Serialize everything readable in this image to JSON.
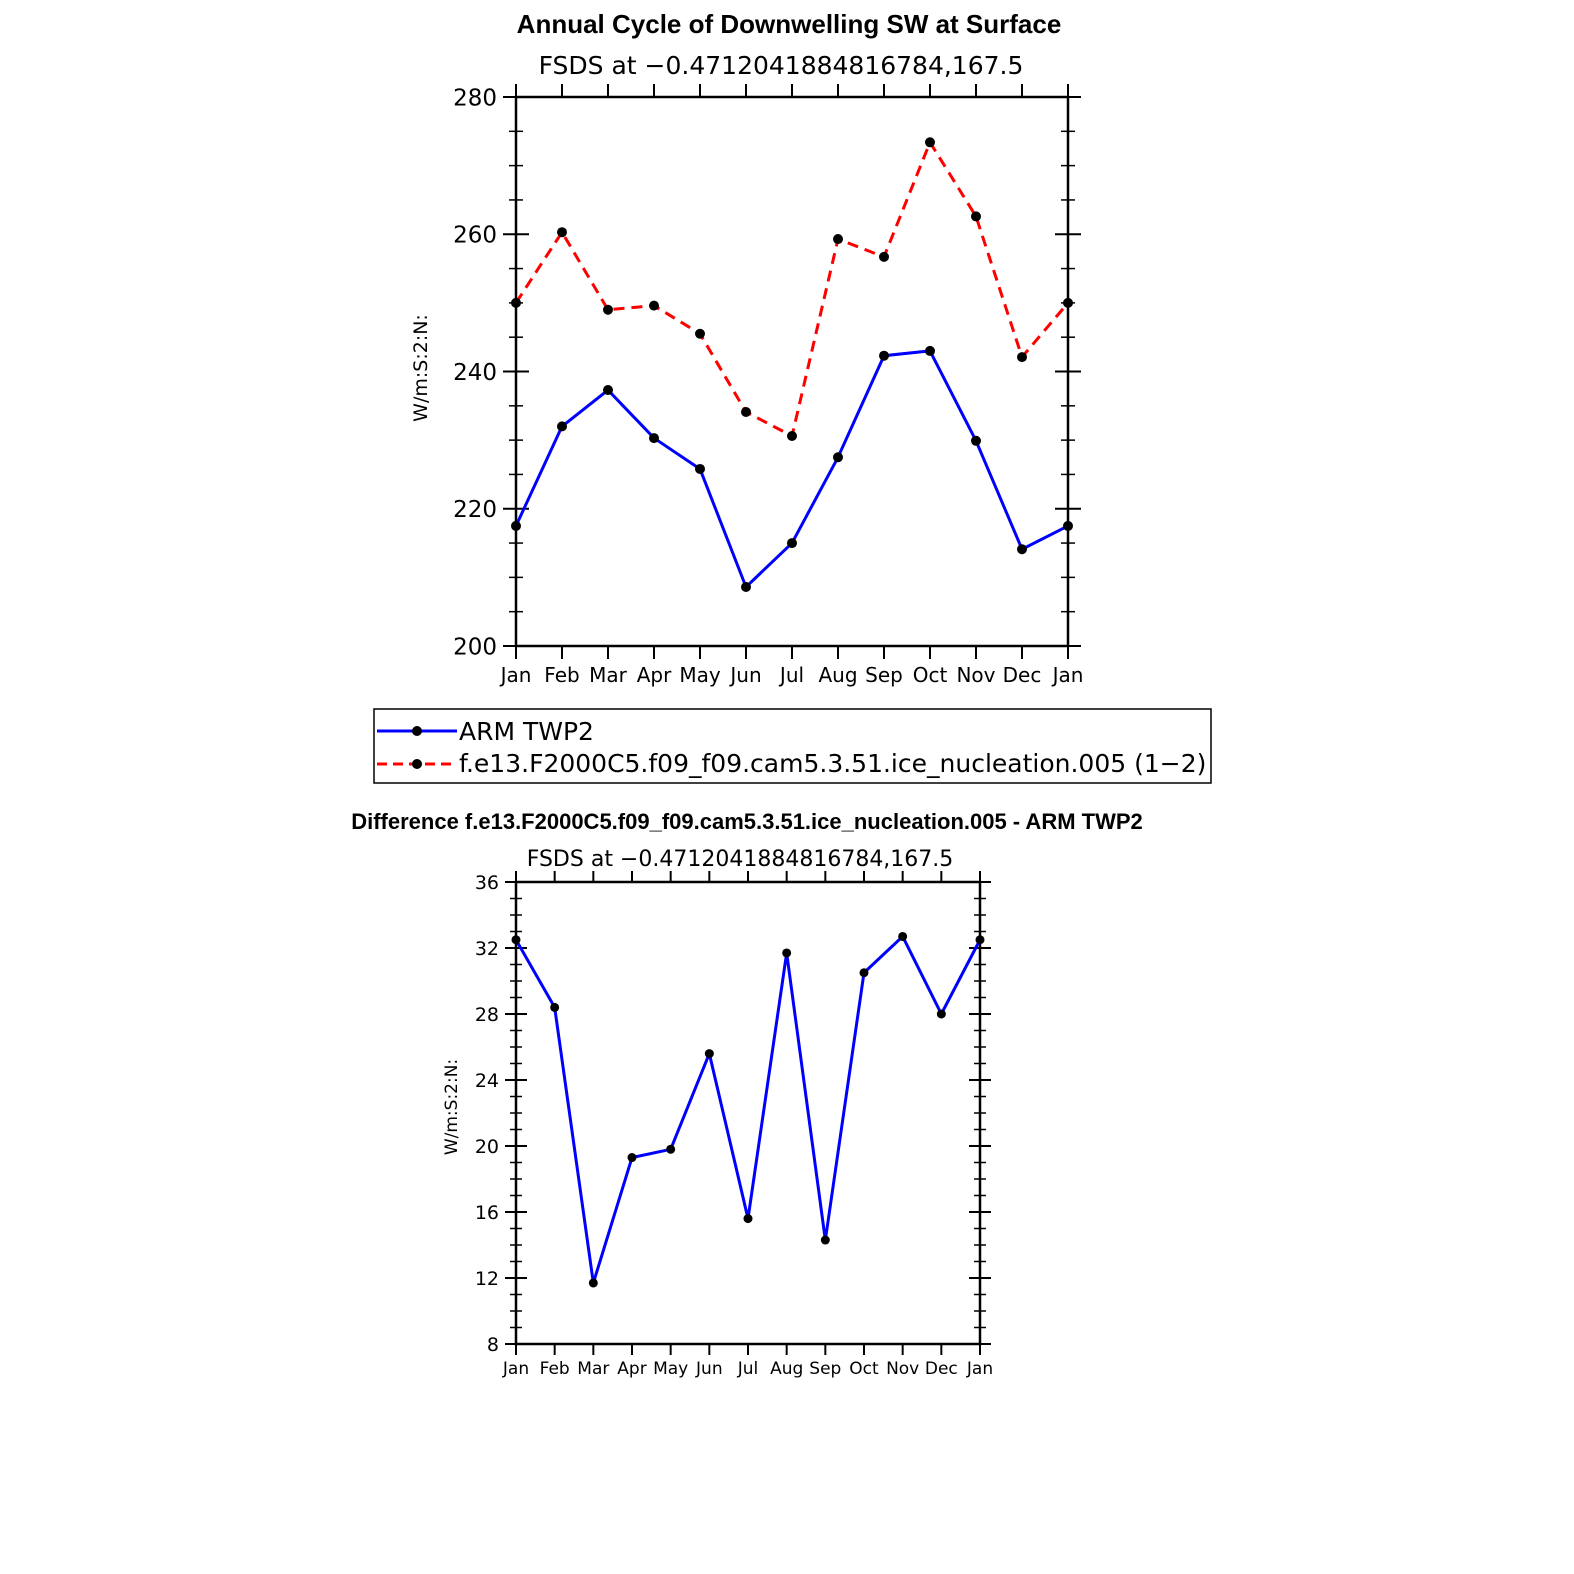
{
  "chart_data": [
    {
      "type": "line",
      "title": "Annual Cycle of Downwelling SW at Surface",
      "subtitle": "FSDS at −0.4712041884816784,167.5",
      "ylabel": "W/m:S:2:N:",
      "xlabel": "",
      "categories": [
        "Jan",
        "Feb",
        "Mar",
        "Apr",
        "May",
        "Jun",
        "Jul",
        "Aug",
        "Sep",
        "Oct",
        "Nov",
        "Dec",
        "Jan"
      ],
      "ylim": [
        200,
        280
      ],
      "yticks": [
        "200",
        "220",
        "240",
        "260",
        "280"
      ],
      "series": [
        {
          "name": "ARM TWP2",
          "color": "#0000ff",
          "dash": "solid",
          "values": [
            217.5,
            232.0,
            237.3,
            230.3,
            225.8,
            208.6,
            215.0,
            227.5,
            242.3,
            243.0,
            229.9,
            214.1,
            217.5
          ]
        },
        {
          "name": "f.e13.F2000C5.f09_f09.cam5.3.51.ice_nucleation.005 (1−2)",
          "color": "#ff0000",
          "dash": "dashed",
          "values": [
            250.0,
            260.3,
            249.0,
            249.6,
            245.5,
            234.1,
            230.6,
            259.3,
            256.7,
            273.4,
            262.6,
            242.1,
            250.0
          ]
        }
      ],
      "legend": "bottom"
    },
    {
      "type": "line",
      "title": "Difference f.e13.F2000C5.f09_f09.cam5.3.51.ice_nucleation.005 - ARM TWP2",
      "subtitle": "FSDS at −0.4712041884816784,167.5",
      "ylabel": "W/m:S:2:N:",
      "xlabel": "",
      "categories": [
        "Jan",
        "Feb",
        "Mar",
        "Apr",
        "May",
        "Jun",
        "Jul",
        "Aug",
        "Sep",
        "Oct",
        "Nov",
        "Dec",
        "Jan"
      ],
      "ylim": [
        8,
        36
      ],
      "yticks": [
        "8",
        "12",
        "16",
        "20",
        "24",
        "28",
        "32",
        "36"
      ],
      "series": [
        {
          "name": "Difference",
          "color": "#0000ff",
          "dash": "solid",
          "values": [
            32.5,
            28.4,
            11.7,
            19.3,
            19.8,
            25.6,
            15.6,
            31.7,
            14.3,
            30.5,
            32.7,
            28.0,
            32.5
          ]
        }
      ]
    }
  ]
}
